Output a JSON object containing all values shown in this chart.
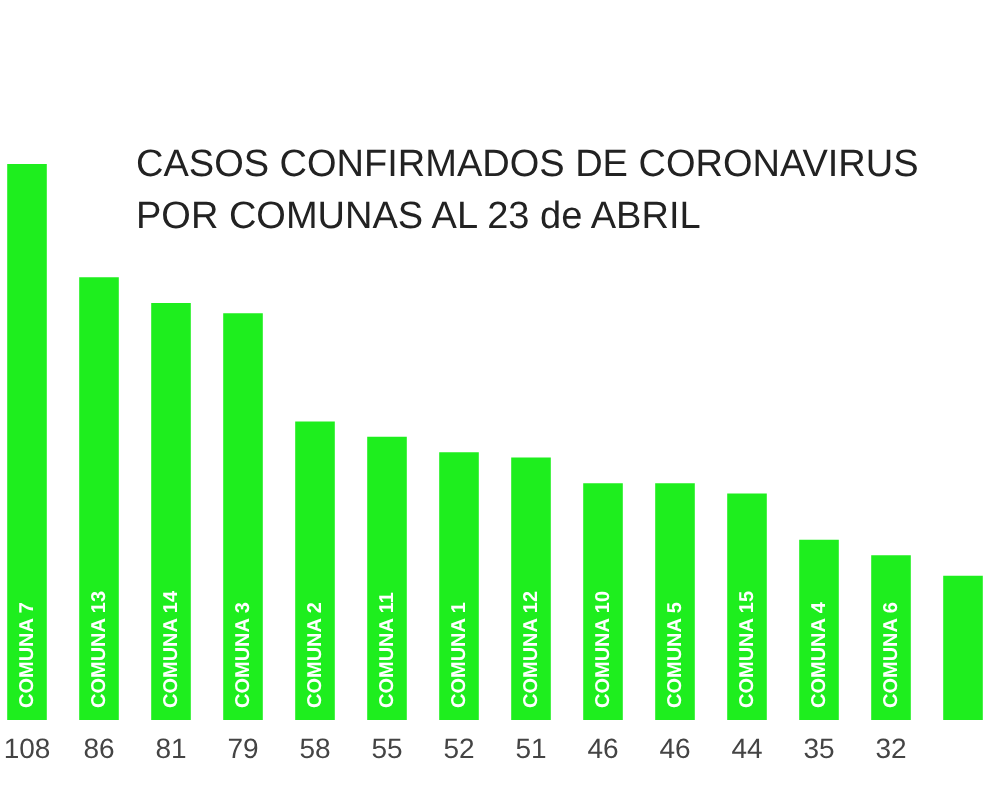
{
  "chart_data": {
    "type": "bar",
    "title": "CASOS CONFIRMADOS DE CORONAVIRUS\nPOR COMUNAS AL 23 de ABRIL",
    "categories": [
      "COMUNA 7",
      "COMUNA 13",
      "COMUNA 14",
      "COMUNA 3",
      "COMUNA 2",
      "COMUNA 11",
      "COMUNA 1",
      "COMUNA 12",
      "COMUNA 10",
      "COMUNA 5",
      "COMUNA 15",
      "COMUNA 4",
      "COMUNA 6",
      null
    ],
    "values": [
      108,
      86,
      81,
      79,
      58,
      55,
      52,
      51,
      46,
      46,
      44,
      35,
      32,
      28
    ],
    "value_labels": [
      "108",
      "86",
      "81",
      "79",
      "58",
      "55",
      "52",
      "51",
      "46",
      "46",
      "44",
      "35",
      "32",
      null
    ],
    "color": "#1eee1e"
  }
}
